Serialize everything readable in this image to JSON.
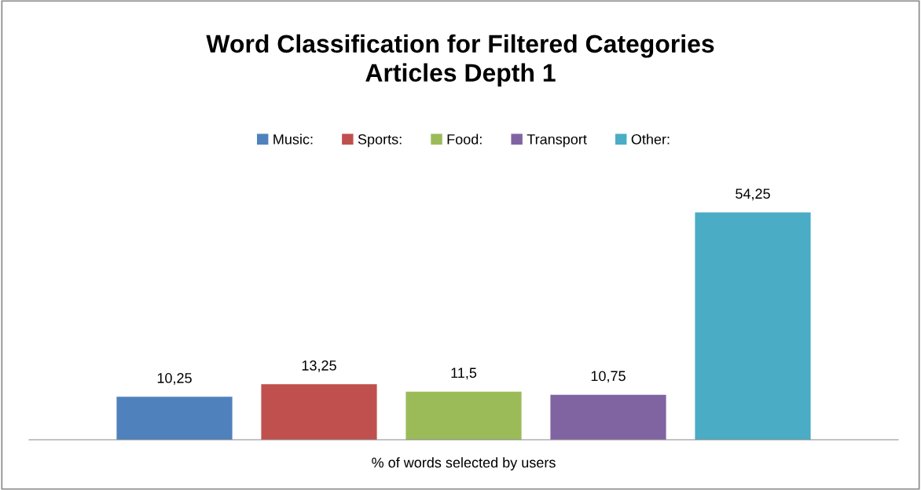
{
  "chart_data": {
    "type": "bar",
    "title": "Word Classification for Filtered Categories\nArticles Depth 1",
    "xlabel": "% of words selected by users",
    "categories": [
      null,
      null,
      null,
      null,
      null
    ],
    "series": [
      {
        "name": "Music:",
        "color": "#4f81bd",
        "values": [
          10.25,
          null,
          null,
          null,
          null
        ],
        "value_labels": [
          "10,25",
          null,
          null,
          null,
          null
        ]
      },
      {
        "name": "Sports:",
        "color": "#c0504d",
        "values": [
          null,
          13.25,
          null,
          null,
          null
        ],
        "value_labels": [
          null,
          "13,25",
          null,
          null,
          null
        ]
      },
      {
        "name": "Food:",
        "color": "#9bbb59",
        "values": [
          null,
          null,
          11.5,
          null,
          null
        ],
        "value_labels": [
          null,
          null,
          "11,5",
          null,
          null
        ]
      },
      {
        "name": "Transport",
        "color": "#8064a2",
        "values": [
          null,
          null,
          null,
          10.75,
          null
        ],
        "value_labels": [
          null,
          null,
          null,
          "10,75",
          null
        ]
      },
      {
        "name": "Other:",
        "color": "#4bacc6",
        "values": [
          null,
          null,
          null,
          null,
          54.25
        ],
        "value_labels": [
          null,
          null,
          null,
          null,
          "54,25"
        ]
      }
    ],
    "stacked": true,
    "legend": "top",
    "grid": false
  }
}
